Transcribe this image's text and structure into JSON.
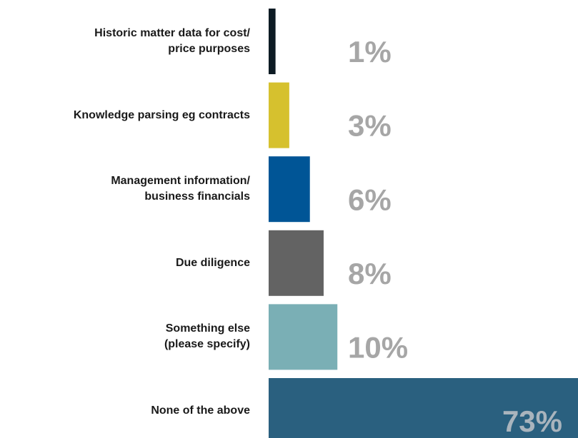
{
  "chart_data": {
    "type": "bar",
    "orientation": "horizontal",
    "categories": [
      "Historic matter data for cost/\nprice purposes",
      "Knowledge parsing eg contracts",
      "Management information/\nbusiness financials",
      "Due diligence",
      "Something else\n(please specify)",
      "None of the above"
    ],
    "values": [
      1,
      3,
      6,
      8,
      10,
      73
    ],
    "value_labels": [
      "1%",
      "3%",
      "6%",
      "8%",
      "10%",
      "73%"
    ],
    "colors": [
      "#0d1b24",
      "#d6c12e",
      "#005596",
      "#636363",
      "#7aafb5",
      "#2a607f"
    ],
    "xlim": [
      0,
      45
    ]
  }
}
